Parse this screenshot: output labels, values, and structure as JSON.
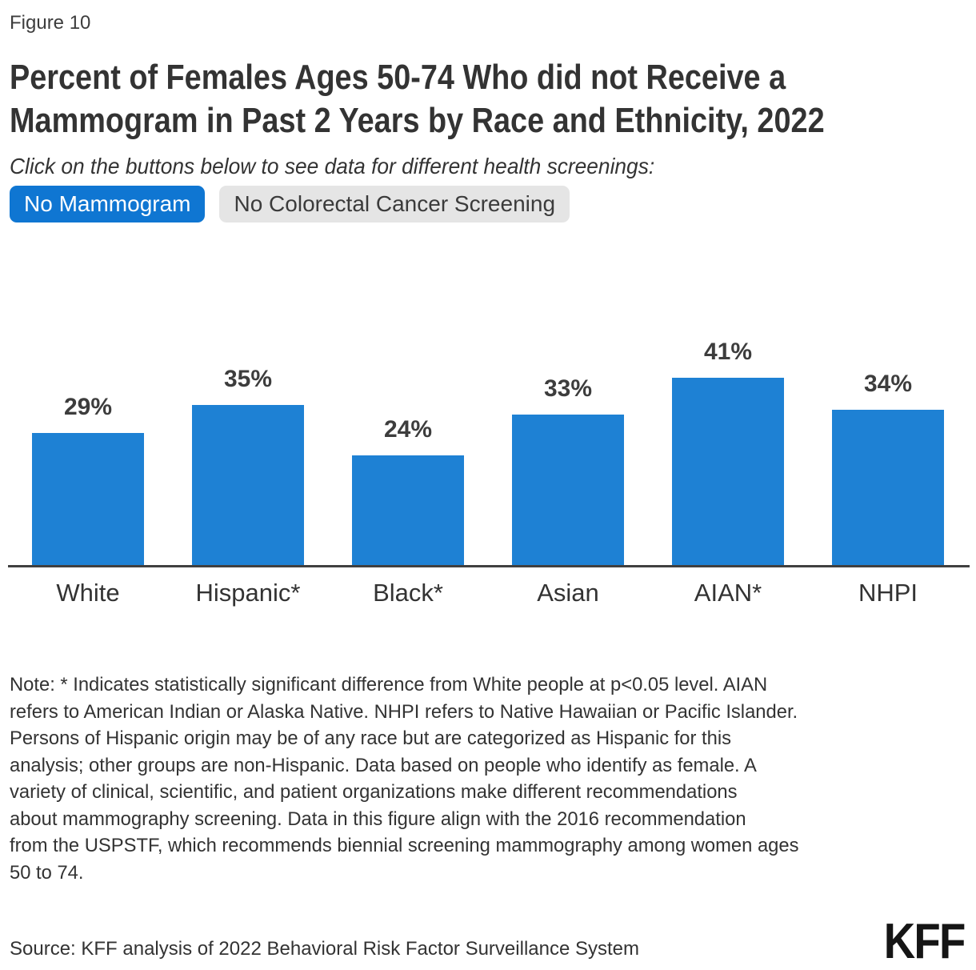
{
  "figure_label": "Figure 10",
  "title": "Percent of Females Ages 50-74 Who did not Receive a\nMammogram in Past 2 Years by Race and Ethnicity, 2022",
  "subtitle": "Click on the buttons below to see data for different health screenings:",
  "toggle_buttons": {
    "items": [
      {
        "label": "No Mammogram",
        "active": true
      },
      {
        "label": "No Colorectal Cancer Screening",
        "active": false
      }
    ]
  },
  "chart_data": {
    "type": "bar",
    "categories": [
      "White",
      "Hispanic*",
      "Black*",
      "Asian",
      "AIAN*",
      "NHPI"
    ],
    "values": [
      29,
      35,
      24,
      33,
      41,
      34
    ],
    "value_labels": [
      "29%",
      "35%",
      "24%",
      "33%",
      "41%",
      "34%"
    ],
    "title": "Percent of Females Ages 50-74 Who did not Receive a Mammogram in Past 2 Years by Race and Ethnicity, 2022",
    "xlabel": "",
    "ylabel": "",
    "ylim": [
      0,
      50
    ],
    "grid": false,
    "legend": "none",
    "bar_color": "#1e81d4",
    "axis_color": "#404040"
  },
  "note": "Note: * Indicates statistically significant difference from White people at p<0.05 level. AIAN\nrefers to American Indian or Alaska Native. NHPI refers to Native Hawaiian or Pacific Islander.\nPersons of Hispanic origin may be of any race but are categorized as Hispanic for this\nanalysis; other groups are non-Hispanic. Data based on people who identify as female. A\nvariety of clinical, scientific, and patient organizations make different recommendations\nabout mammography screening. Data in this figure align with the 2016 recommendation\nfrom the USPSTF, which recommends biennial screening mammography among women ages\n50 to 74.",
  "source": "Source: KFF analysis of 2022 Behavioral Risk Factor Surveillance System",
  "logo": "KFF",
  "colors": {
    "accent_blue": "#0f76d2",
    "bar_blue": "#1e81d4",
    "inactive_gray": "#e5e5e5",
    "text_dark": "#333333"
  }
}
